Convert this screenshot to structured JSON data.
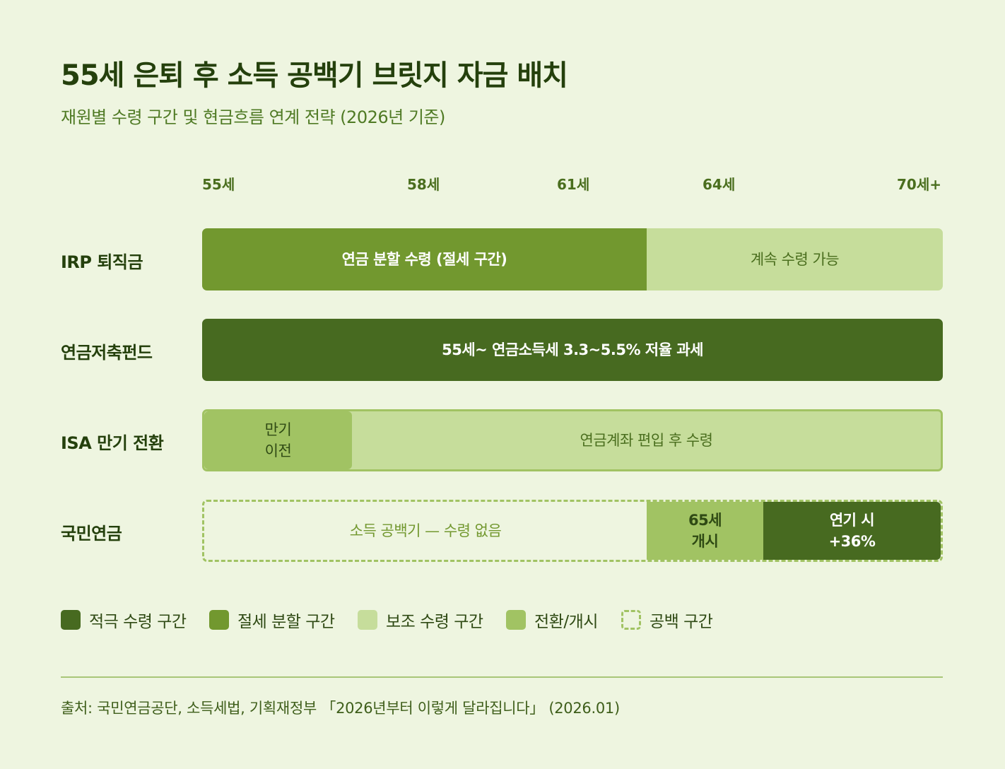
{
  "title": "55세 은퇴 후 소득 공백기 브릿지 자금 배치",
  "subtitle": "재원별 수령 구간 및 현금흐름 연계 전략 (2026년 기준)",
  "ages": [
    "55세",
    "58세",
    "61세",
    "64세",
    "70세+"
  ],
  "rows": [
    {
      "label": "IRP 퇴직금",
      "segments": [
        "연금 분할 수령 (절세 구간)",
        "계속 수령 가능"
      ]
    },
    {
      "label": "연금저축펀드",
      "segments": [
        "55세~ 연금소득세 3.3~5.5% 저율 과세"
      ]
    },
    {
      "label": "ISA 만기 전환",
      "segments": [
        "만기\n이전",
        "연금계좌 편입 후 수령"
      ]
    },
    {
      "label": "국민연금",
      "segments": [
        "소득 공백기 — 수령 없음",
        "65세\n개시",
        "연기 시\n+36%"
      ]
    }
  ],
  "legend": [
    {
      "label": "적극 수령 구간",
      "color": "#476a20"
    },
    {
      "label": "절세 분할 구간",
      "color": "#72982f"
    },
    {
      "label": "보조 수령 구간",
      "color": "#c6dd9b"
    },
    {
      "label": "전환/개시",
      "color": "#a1c363"
    },
    {
      "label": "공백 구간",
      "color": "#a1c363"
    }
  ],
  "source": "출처: 국민연금공단, 소득세법, 기획재정부 「2026년부터 이렇게 달라집니다」 (2026.01)"
}
